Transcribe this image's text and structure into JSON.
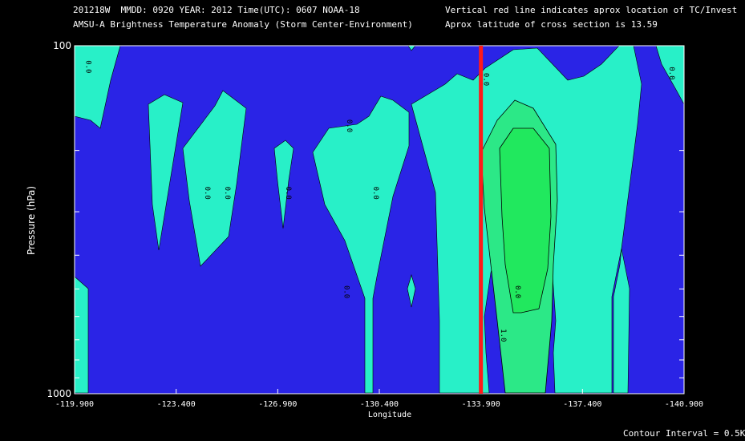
{
  "header": {
    "line1_left": "201218W  MMDD: 0920 YEAR: 2012 Time(UTC): 0607 NOAA-18",
    "line2_left": "AMSU-A Brightness Temperature Anomaly (Storm Center-Environment)",
    "line1_right": "Vertical red line indicates aprox location of TC/Invest",
    "line2_right": "Aprox latitude of cross section is 13.59"
  },
  "footer": {
    "contour_interval": "Contour Interval = 0.5K"
  },
  "colors": {
    "background": "#000000",
    "level_lt0": "#2a24e6",
    "level_0_05": "#28f0c8",
    "level_05_10": "#2ce887",
    "level_gt10": "#21e85e",
    "tc_line": "#ff1a1a",
    "text": "#ffffff"
  },
  "chart_data": {
    "type": "contour",
    "xlabel": "Longitude",
    "ylabel": "Pressure (hPa)",
    "x_ticks": [
      "-119.900",
      "-123.400",
      "-126.900",
      "-130.400",
      "-133.900",
      "-137.400",
      "-140.900"
    ],
    "xlim": [
      -119.9,
      -140.9
    ],
    "y_ticks": [
      "100",
      "1000"
    ],
    "ylim": [
      1000,
      100
    ],
    "y_scale": "log",
    "tc_longitude": -133.9,
    "contour_interval_k": 0.5,
    "contour_labels": [
      {
        "text": "0.0",
        "lon": -120.3,
        "p": 115
      },
      {
        "text": "0.0",
        "lon": -129.3,
        "p": 170
      },
      {
        "text": "0.0",
        "lon": -134.0,
        "p": 125
      },
      {
        "text": "0.0",
        "lon": -140.4,
        "p": 120
      },
      {
        "text": "0.0",
        "lon": -124.4,
        "p": 265
      },
      {
        "text": "0.0",
        "lon": -125.1,
        "p": 265
      },
      {
        "text": "0.0",
        "lon": -127.2,
        "p": 265
      },
      {
        "text": "0.0",
        "lon": -130.2,
        "p": 265
      },
      {
        "text": "0.0",
        "lon": -129.2,
        "p": 510
      },
      {
        "text": "0.0",
        "lon": -135.1,
        "p": 510
      },
      {
        "text": "1.0",
        "lon": -134.6,
        "p": 680
      }
    ]
  }
}
